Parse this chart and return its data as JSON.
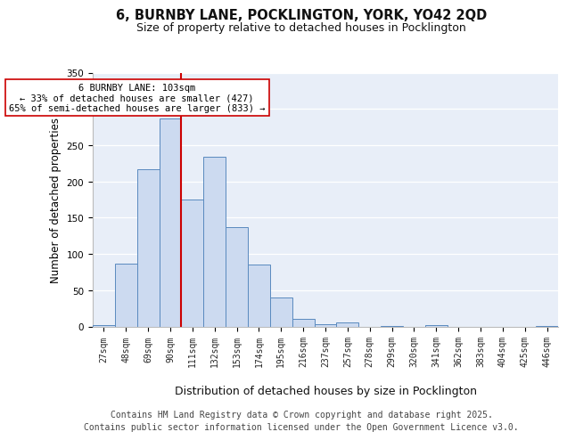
{
  "title_line1": "6, BURNBY LANE, POCKLINGTON, YORK, YO42 2QD",
  "title_line2": "Size of property relative to detached houses in Pocklington",
  "xlabel": "Distribution of detached houses by size in Pocklington",
  "ylabel": "Number of detached properties",
  "bar_labels": [
    "27sqm",
    "48sqm",
    "69sqm",
    "90sqm",
    "111sqm",
    "132sqm",
    "153sqm",
    "174sqm",
    "195sqm",
    "216sqm",
    "237sqm",
    "257sqm",
    "278sqm",
    "299sqm",
    "320sqm",
    "341sqm",
    "362sqm",
    "383sqm",
    "404sqm",
    "425sqm",
    "446sqm"
  ],
  "bar_values": [
    2,
    86,
    217,
    287,
    175,
    234,
    137,
    85,
    40,
    10,
    3,
    6,
    0,
    1,
    0,
    2,
    0,
    0,
    0,
    0,
    1
  ],
  "bar_color": "#ccdaf0",
  "bar_edge_color": "#5a8abf",
  "vline_color": "#cc0000",
  "annotation_text": "6 BURNBY LANE: 103sqm\n← 33% of detached houses are smaller (427)\n65% of semi-detached houses are larger (833) →",
  "annotation_box_color": "#ffffff",
  "annotation_box_edge": "#cc0000",
  "ylim_max": 350,
  "yticks": [
    0,
    50,
    100,
    150,
    200,
    250,
    300,
    350
  ],
  "plot_bg": "#e8eef8",
  "footer_line1": "Contains HM Land Registry data © Crown copyright and database right 2025.",
  "footer_line2": "Contains public sector information licensed under the Open Government Licence v3.0.",
  "title_fontsize": 10.5,
  "subtitle_fontsize": 9,
  "ylabel_fontsize": 8.5,
  "xlabel_fontsize": 9,
  "tick_fontsize": 7,
  "annotation_fontsize": 7.5,
  "footer_fontsize": 7
}
